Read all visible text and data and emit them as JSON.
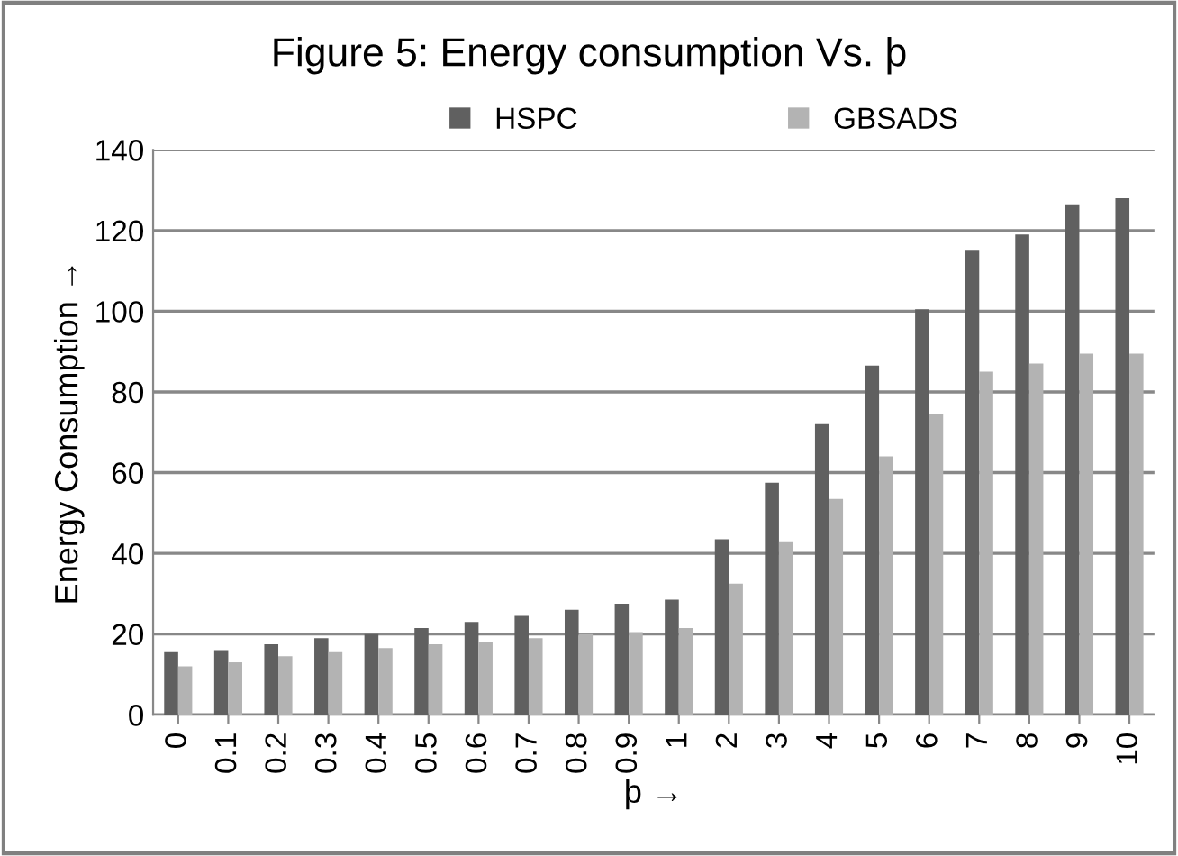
{
  "chart_data": {
    "type": "bar",
    "title": "Figure 5: Energy consumption Vs. þ",
    "xlabel": "þ →",
    "ylabel": "Energy Consumption →",
    "categories": [
      "0",
      "0.1",
      "0.2",
      "0.3",
      "0.4",
      "0.5",
      "0.6",
      "0.7",
      "0.8",
      "0.9",
      "1",
      "2",
      "3",
      "4",
      "5",
      "6",
      "7",
      "8",
      "9",
      "10"
    ],
    "series": [
      {
        "name": "HSPC",
        "color": "#606060",
        "values": [
          15.5,
          16,
          17.5,
          19,
          20,
          21.5,
          23,
          24.5,
          26,
          27.5,
          28.5,
          43.5,
          57.5,
          72,
          86.5,
          100.5,
          115,
          119,
          126.5,
          128
        ]
      },
      {
        "name": "GBSADS",
        "color": "#b3b3b3",
        "values": [
          12,
          13,
          14.5,
          15.5,
          16.5,
          17.5,
          18,
          19,
          20,
          20.5,
          21.5,
          32.5,
          43,
          53.5,
          64,
          74.5,
          85,
          87,
          89.5,
          89.5
        ]
      }
    ],
    "ylim": [
      0,
      140
    ],
    "yticks": [
      0,
      20,
      40,
      60,
      80,
      100,
      120,
      140
    ],
    "grid": "y",
    "legend": "top"
  }
}
